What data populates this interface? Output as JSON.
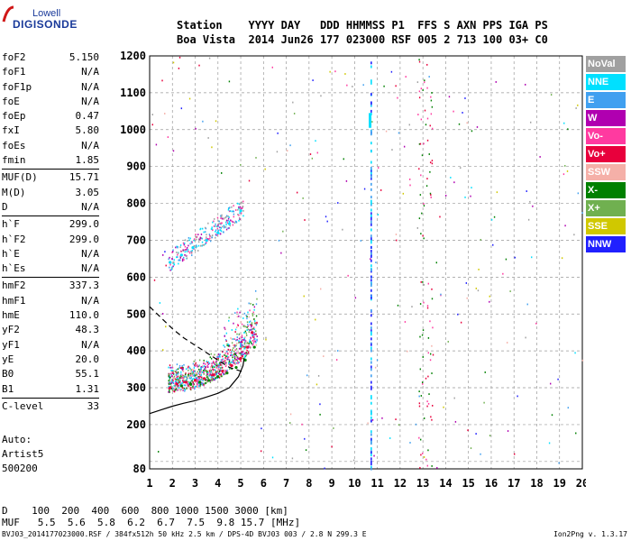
{
  "logo": {
    "line1": "Lowell",
    "line2": "DIGISONDE"
  },
  "header": {
    "row1": "Station    YYYY DAY   DDD HHMMSS P1  FFS S AXN PPS IGA PS",
    "row2": "Boa Vista  2014 Jun26 177 023000 RSF 005 2 713 100 03+ C0"
  },
  "params": [
    [
      [
        "foF2",
        "5.150"
      ],
      [
        "foF1",
        "N/A"
      ],
      [
        "foF1p",
        "N/A"
      ],
      [
        "foE",
        "N/A"
      ],
      [
        "foEp",
        "0.47"
      ],
      [
        "fxI",
        "5.80"
      ],
      [
        "foEs",
        "N/A"
      ],
      [
        "fmin",
        "1.85"
      ]
    ],
    [
      [
        "MUF(D)",
        "15.71"
      ],
      [
        "M(D)",
        "3.05"
      ],
      [
        "D",
        "N/A"
      ]
    ],
    [
      [
        "h`F",
        "299.0"
      ],
      [
        "h`F2",
        "299.0"
      ],
      [
        "h`E",
        "N/A"
      ],
      [
        "h`Es",
        "N/A"
      ]
    ],
    [
      [
        "hmF2",
        "337.3"
      ],
      [
        "hmF1",
        "N/A"
      ],
      [
        "hmE",
        "110.0"
      ],
      [
        "yF2",
        "48.3"
      ],
      [
        "yF1",
        "N/A"
      ],
      [
        "yE",
        "20.0"
      ],
      [
        "B0",
        "55.1"
      ],
      [
        "B1",
        "1.31"
      ]
    ],
    [
      [
        "C-level",
        "33"
      ]
    ]
  ],
  "auto": {
    "line1": "Auto:",
    "line2": "Artist5",
    "line3": "500200"
  },
  "legend": [
    {
      "label": "NoVal",
      "color": "#a0a0a0"
    },
    {
      "label": "NNE",
      "color": "#00e0ff"
    },
    {
      "label": "E",
      "color": "#40a0f0"
    },
    {
      "label": "W",
      "color": "#b000b0"
    },
    {
      "label": "Vo-",
      "color": "#ff3aa0"
    },
    {
      "label": "Vo+",
      "color": "#e8003c"
    },
    {
      "label": "SSW",
      "color": "#f5b0a8"
    },
    {
      "label": "X-",
      "color": "#008000"
    },
    {
      "label": "X+",
      "color": "#70b050"
    },
    {
      "label": "SSE",
      "color": "#d0c800"
    },
    {
      "label": "NNW",
      "color": "#2020ff"
    }
  ],
  "footer": {
    "row1": "D    100  200  400  600  800 1000 1500 3000 [km]",
    "row2": "MUF   5.5  5.6  5.8  6.2  6.7  7.5  9.8 15.7 [MHz]",
    "bottom": "BVJ03_2014177023000.RSF / 384fx512h 50 kHz 2.5 km / DPS-4D BVJ03 003 / 2.8 N 299.3 E",
    "version": "Ion2Png v. 1.3.17"
  },
  "chart_data": {
    "type": "scatter",
    "xlim": [
      1,
      20
    ],
    "ylim": [
      80,
      1200
    ],
    "x_ticks": [
      1,
      2,
      3,
      4,
      5,
      6,
      7,
      8,
      9,
      10,
      11,
      12,
      13,
      14,
      15,
      16,
      17,
      18,
      19,
      20
    ],
    "y_ticks": [
      80,
      100,
      200,
      300,
      400,
      500,
      600,
      700,
      800,
      900,
      1000,
      1100,
      1200
    ],
    "y_tick_labels": [
      "80",
      "",
      "200",
      "300",
      "400",
      "500",
      "600",
      "700",
      "800",
      "900",
      "1000",
      "1100",
      "1200"
    ],
    "grid": true,
    "legend_position": "right",
    "series": [
      {
        "name": "Vo+",
        "points": [
          [
            1.9,
            300
          ],
          [
            2.2,
            310
          ],
          [
            2.6,
            315
          ],
          [
            3.0,
            320
          ],
          [
            3.4,
            325
          ],
          [
            3.8,
            335
          ],
          [
            4.2,
            345
          ],
          [
            4.6,
            360
          ],
          [
            5.0,
            380
          ],
          [
            5.3,
            410
          ],
          [
            5.5,
            450
          ]
        ]
      },
      {
        "name": "X-",
        "points": [
          [
            2.4,
            305
          ],
          [
            2.8,
            310
          ],
          [
            3.2,
            315
          ],
          [
            3.6,
            320
          ],
          [
            4.0,
            330
          ],
          [
            4.4,
            340
          ],
          [
            4.8,
            355
          ],
          [
            5.2,
            375
          ],
          [
            5.6,
            410
          ]
        ]
      },
      {
        "name": "NNE",
        "points": [
          [
            1.9,
            640
          ],
          [
            2.4,
            660
          ],
          [
            2.9,
            680
          ],
          [
            3.5,
            700
          ],
          [
            4.0,
            720
          ],
          [
            4.5,
            745
          ],
          [
            5.0,
            780
          ]
        ]
      }
    ],
    "trace_curve": [
      [
        1,
        230
      ],
      [
        1.5,
        240
      ],
      [
        2,
        250
      ],
      [
        2.5,
        258
      ],
      [
        3,
        265
      ],
      [
        3.5,
        275
      ],
      [
        4,
        285
      ],
      [
        4.5,
        300
      ],
      [
        4.9,
        330
      ],
      [
        5.1,
        360
      ],
      [
        5.15,
        380
      ]
    ],
    "profile_curve": [
      [
        1,
        520
      ],
      [
        1.5,
        490
      ],
      [
        2,
        460
      ],
      [
        2.5,
        435
      ],
      [
        3,
        415
      ],
      [
        3.5,
        395
      ],
      [
        4,
        375
      ],
      [
        4.5,
        355
      ],
      [
        5,
        345
      ],
      [
        5.15,
        337
      ]
    ]
  }
}
